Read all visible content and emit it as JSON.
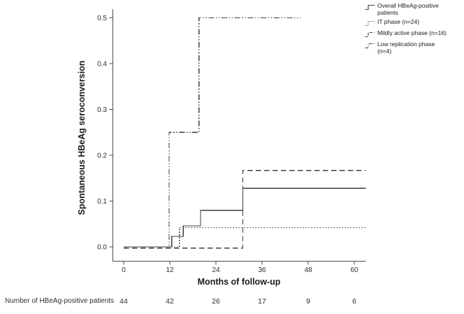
{
  "figure": {
    "x_axis_title": "Months of follow-up",
    "y_axis_title": "Spontaneous HBeAg seroconversion"
  },
  "legend": {
    "position": "top-right",
    "items": [
      {
        "label": "Overall HBeAg-positive patients",
        "style": "solid"
      },
      {
        "label": "IT phase (n=24)",
        "style": "dotted"
      },
      {
        "label": "Mildly active phase (n=16)",
        "style": "dashed"
      },
      {
        "label": "Low replication phase (n=4)",
        "style": "dash-dot-dot"
      }
    ]
  },
  "at_risk": {
    "label": "Number of HBeAg-positive patients",
    "values": [
      44,
      42,
      26,
      17,
      9,
      6
    ],
    "x_months": [
      0,
      12,
      24,
      36,
      48,
      60
    ]
  },
  "chart_data": {
    "type": "line",
    "subtype": "kaplan-meier-step",
    "title": "",
    "xlabel": "Months of follow-up",
    "ylabel": "Spontaneous HBeAg seroconversion",
    "xlim": [
      0,
      63
    ],
    "ylim": [
      0,
      0.5
    ],
    "x_ticks": [
      0,
      12,
      24,
      36,
      48,
      60
    ],
    "y_ticks": [
      0,
      0.1,
      0.2,
      0.3,
      0.4,
      0.5
    ],
    "y_tick_labels": [
      "0.0",
      "0.1",
      "0.2",
      "0.3",
      "0.4",
      "0.5"
    ],
    "grid": false,
    "legend_position": "top-right",
    "line_color": "#3d3d3d",
    "series": [
      {
        "name": "Overall HBeAg-positive patients",
        "style": "solid",
        "points": [
          [
            0,
            0
          ],
          [
            12.5,
            0
          ],
          [
            12.5,
            0.023
          ],
          [
            15.5,
            0.023
          ],
          [
            15.5,
            0.046
          ],
          [
            20,
            0.046
          ],
          [
            20,
            0.08
          ],
          [
            31,
            0.08
          ],
          [
            31,
            0.128
          ],
          [
            63,
            0.128
          ]
        ]
      },
      {
        "name": "IT phase (n=24)",
        "style": "dotted",
        "points": [
          [
            0,
            0
          ],
          [
            14.5,
            0
          ],
          [
            14.5,
            0.042
          ],
          [
            63,
            0.042
          ]
        ]
      },
      {
        "name": "Mildly active phase (n=16)",
        "style": "dashed",
        "points": [
          [
            0,
            0
          ],
          [
            31,
            0
          ],
          [
            31,
            0.167
          ],
          [
            63,
            0.167
          ]
        ]
      },
      {
        "name": "Low replication phase (n=4)",
        "style": "dash-dot-dot",
        "points": [
          [
            0,
            0
          ],
          [
            11.8,
            0
          ],
          [
            11.8,
            0.25
          ],
          [
            19.6,
            0.25
          ],
          [
            19.6,
            0.5
          ],
          [
            46,
            0.5
          ]
        ]
      }
    ],
    "at_risk_counts": {
      "label": "Number of HBeAg-positive patients",
      "x": [
        0,
        12,
        24,
        36,
        48,
        60
      ],
      "values": [
        44,
        42,
        26,
        17,
        9,
        6
      ]
    }
  }
}
